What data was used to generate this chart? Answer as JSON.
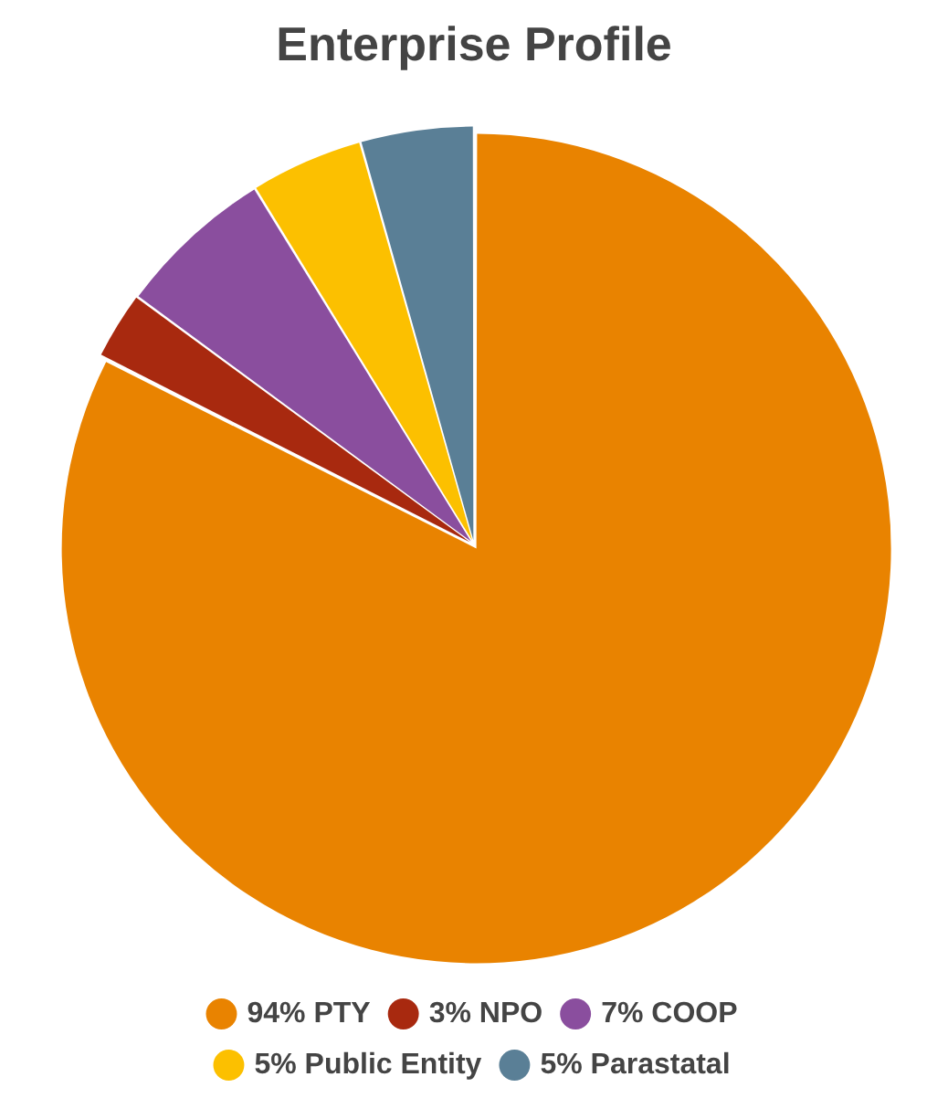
{
  "chart_data": {
    "type": "pie",
    "title": "Enterprise Profile",
    "categories": [
      "94% PTY",
      "3% NPO",
      "7% COOP",
      "5% Public Entity",
      "5% Parastatal"
    ],
    "values": [
      94,
      3,
      7,
      5,
      5
    ],
    "colors": [
      "#e98300",
      "#a8290f",
      "#8a4e9e",
      "#fcc000",
      "#5a7f96"
    ],
    "legend": "bottom"
  }
}
